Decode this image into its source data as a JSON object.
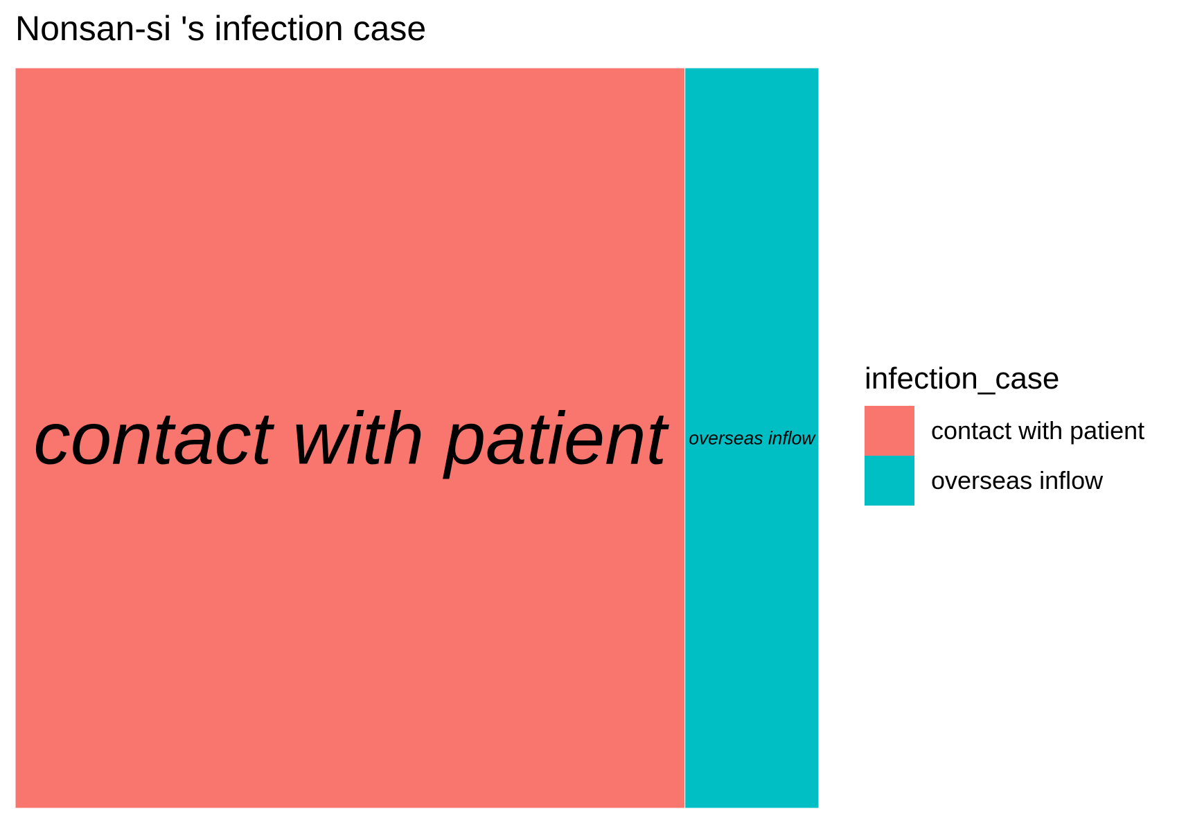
{
  "chart_data": {
    "type": "treemap",
    "title": "Nonsan-si 's infection case",
    "legend_title": "infection_case",
    "legend_position": "right",
    "categories": [
      "contact with patient",
      "overseas inflow"
    ],
    "values": [
      5,
      1
    ],
    "colors": [
      "#F8766D",
      "#00BFC4"
    ]
  }
}
